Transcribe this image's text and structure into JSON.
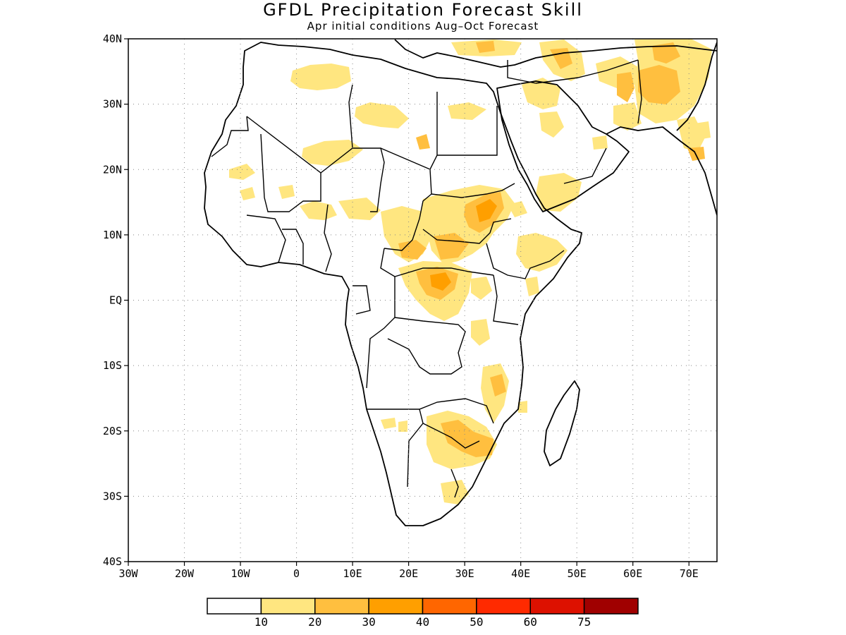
{
  "title": "GFDL Precipitation Forecast Skill",
  "subtitle": "Apr initial conditions  Aug–Oct Forecast",
  "map": {
    "lon_range": [
      -30,
      75
    ],
    "lat_range": [
      -40,
      40
    ],
    "lat_ticks": [
      {
        "value": 40,
        "label": "40N"
      },
      {
        "value": 30,
        "label": "30N"
      },
      {
        "value": 20,
        "label": "20N"
      },
      {
        "value": 10,
        "label": "10N"
      },
      {
        "value": 0,
        "label": "EQ"
      },
      {
        "value": -10,
        "label": "10S"
      },
      {
        "value": -20,
        "label": "20S"
      },
      {
        "value": -30,
        "label": "30S"
      },
      {
        "value": -40,
        "label": "40S"
      }
    ],
    "lon_ticks": [
      {
        "value": -30,
        "label": "30W"
      },
      {
        "value": -20,
        "label": "20W"
      },
      {
        "value": -10,
        "label": "10W"
      },
      {
        "value": 0,
        "label": "0"
      },
      {
        "value": 10,
        "label": "10E"
      },
      {
        "value": 20,
        "label": "20E"
      },
      {
        "value": 30,
        "label": "30E"
      },
      {
        "value": 40,
        "label": "40E"
      },
      {
        "value": 50,
        "label": "50E"
      },
      {
        "value": 60,
        "label": "60E"
      },
      {
        "value": 70,
        "label": "70E"
      }
    ],
    "grid": true
  },
  "colorbar": {
    "colors": [
      "#ffffff",
      "#ffe680",
      "#ffbf3f",
      "#ff9f00",
      "#ff6600",
      "#ff2a00",
      "#dd1100",
      "#a00000"
    ],
    "labels": [
      "10",
      "20",
      "30",
      "40",
      "50",
      "60",
      "75"
    ]
  }
}
